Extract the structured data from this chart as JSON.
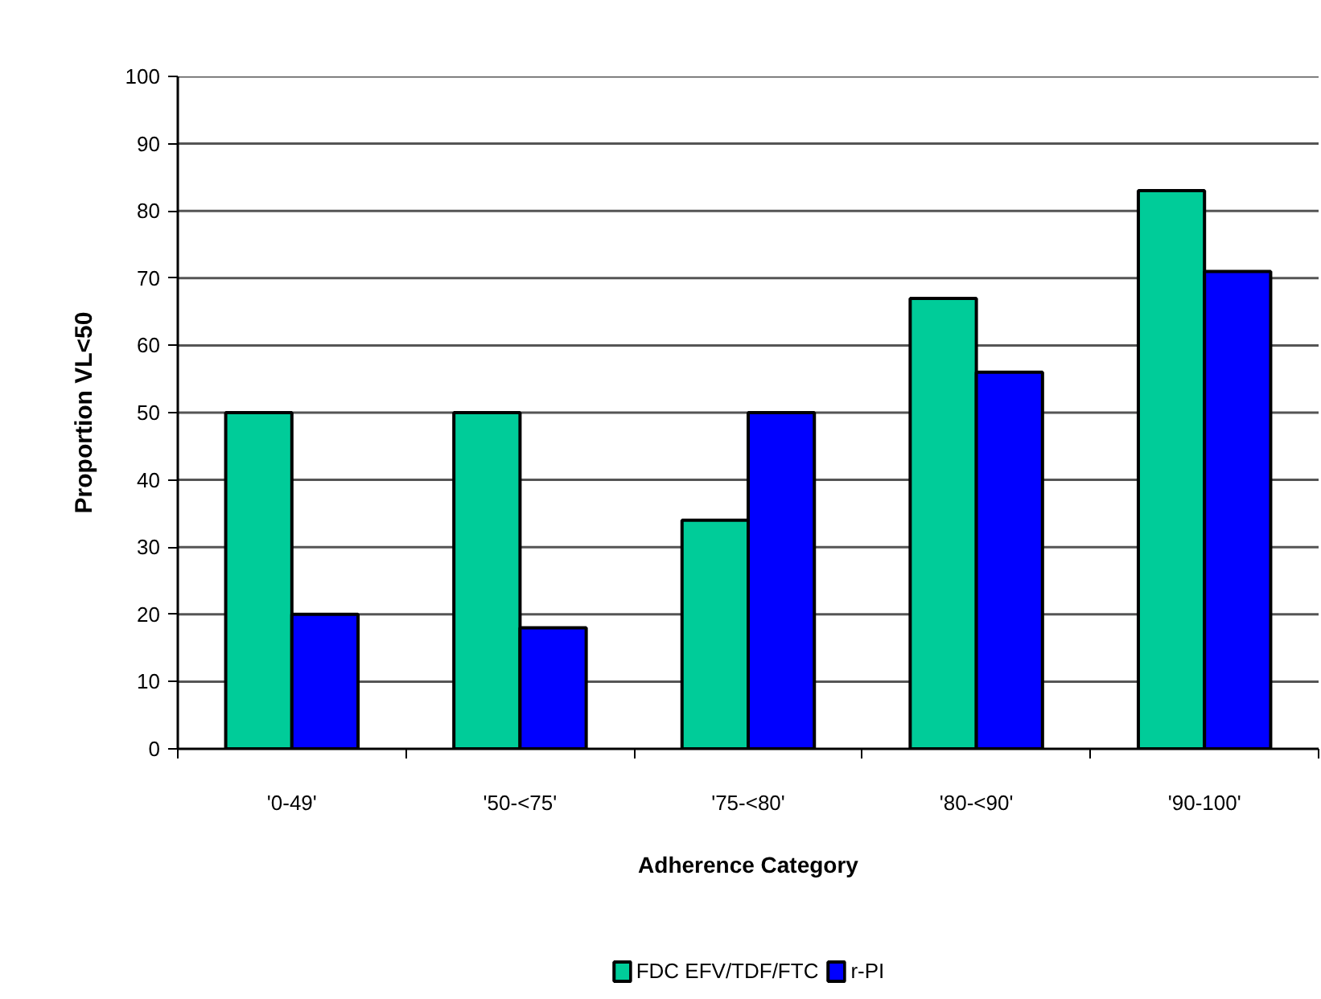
{
  "chart_data": {
    "type": "bar",
    "xlabel": "Adherence Category",
    "ylabel": "Proportion VL<50",
    "categories": [
      "'0-49'",
      "'50-<75'",
      "'75-<80'",
      "'80-<90'",
      "'90-100'"
    ],
    "series": [
      {
        "name": "FDC EFV/TDF/FTC",
        "color": "#00cc99",
        "values": [
          50,
          50,
          34,
          67,
          83
        ]
      },
      {
        "name": "r-PI",
        "color": "#0000ff",
        "values": [
          20,
          18,
          50,
          56,
          71
        ]
      }
    ],
    "ylim": [
      0,
      100
    ],
    "yticks": [
      0,
      10,
      20,
      30,
      40,
      50,
      60,
      70,
      80,
      90,
      100
    ],
    "grid": "y",
    "legend": "bottom"
  }
}
